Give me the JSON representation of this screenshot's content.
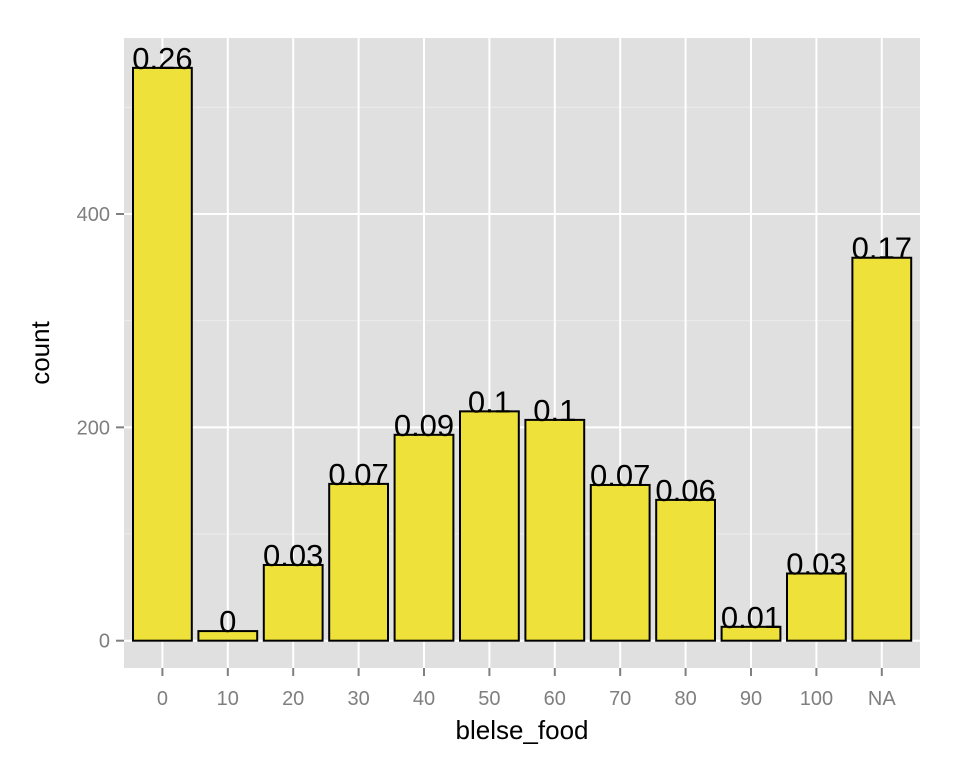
{
  "chart_data": {
    "type": "bar",
    "title": "",
    "xlabel": "blelse_food",
    "ylabel": "count",
    "categories": [
      "0",
      "10",
      "20",
      "30",
      "40",
      "50",
      "60",
      "70",
      "80",
      "90",
      "100",
      "NA"
    ],
    "values": [
      537,
      9,
      71,
      147,
      193,
      215,
      207,
      146,
      132,
      13,
      63,
      359
    ],
    "data_labels": [
      "0.26",
      "0",
      "0.03",
      "0.07",
      "0.09",
      "0.1",
      "0.1",
      "0.07",
      "0.06",
      "0.01",
      "0.03",
      "0.17"
    ],
    "y_ticks": [
      0,
      200,
      400
    ],
    "y_tick_labels": [
      "0",
      "200",
      "400"
    ],
    "ylim": [
      -25.6,
      565
    ],
    "grid": true,
    "legend": "none",
    "colors": {
      "bar_fill": "#ede13a",
      "bar_stroke": "#000000",
      "panel_bg": "#e0e0e0",
      "grid_major": "#ffffff",
      "grid_minor": "#ebebeb",
      "tick_text": "#7f7f7f"
    }
  }
}
